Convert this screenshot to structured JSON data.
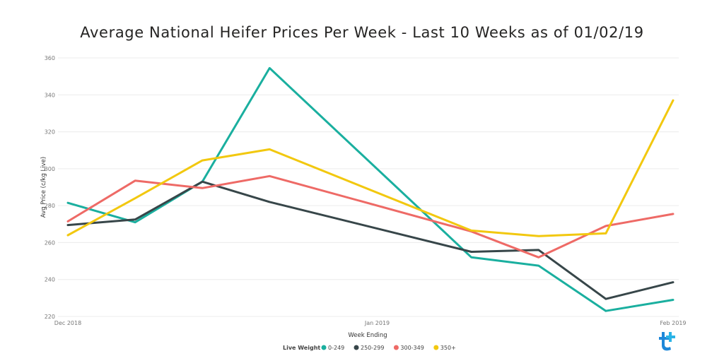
{
  "chart_data": {
    "type": "line",
    "title": "Average National Heifer Prices Per Week - Last 10 Weeks as of 01/02/19",
    "xlabel": "Week Ending",
    "ylabel": "Avg Price (c/kg Live)",
    "ylim": [
      220,
      360
    ],
    "yticks": [
      220,
      240,
      260,
      280,
      300,
      320,
      340,
      360
    ],
    "xlim": [
      0,
      9
    ],
    "xtick_labels": [
      {
        "x": 0,
        "label": "Dec 2018"
      },
      {
        "x": 4.6,
        "label": "Jan 2019"
      },
      {
        "x": 9,
        "label": "Feb 2019"
      }
    ],
    "grid": true,
    "legend_title": "Live Weight",
    "legend_position": "bottom",
    "x": [
      0,
      1,
      2,
      3,
      4,
      5,
      6,
      7,
      8,
      9
    ],
    "series": [
      {
        "name": "0-249",
        "color": "#1aaf9f",
        "values": [
          281.5,
          271,
          293,
          354.5,
          null,
          null,
          252,
          247.5,
          223,
          229
        ]
      },
      {
        "name": "250-299",
        "color": "#374649",
        "values": [
          269.5,
          272.5,
          293,
          282,
          null,
          null,
          255,
          256,
          229.5,
          238.5
        ]
      },
      {
        "name": "300-349",
        "color": "#ee6a66",
        "values": [
          271.5,
          293.5,
          289.5,
          296,
          null,
          null,
          266,
          252,
          269,
          275.5
        ]
      },
      {
        "name": "350+",
        "color": "#f2c80f",
        "values": [
          264,
          284,
          304.5,
          310.5,
          null,
          null,
          266.5,
          263.5,
          265,
          337
        ]
      }
    ]
  }
}
